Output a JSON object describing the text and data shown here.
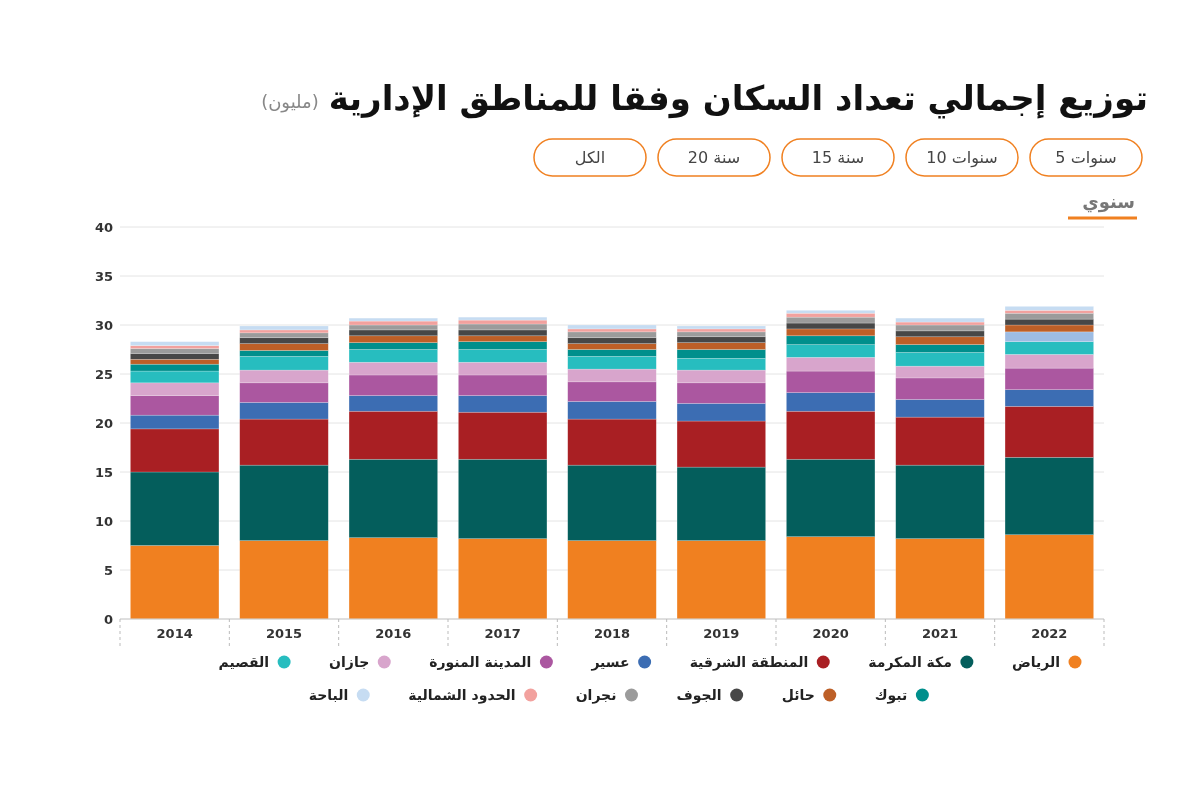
{
  "chart_data": {
    "type": "bar",
    "stacked": true,
    "title": "توزيع إجمالي تعداد السكان وفقا للمناطق الإدارية",
    "subtitle": "(مليون)",
    "annotations": [
      "5 سنوات",
      "10 سنوات",
      "15 سنة",
      "20 سنة",
      "الكل",
      "سنوي"
    ],
    "categories": [
      "2014",
      "2015",
      "2016",
      "2017",
      "2018",
      "2019",
      "2020",
      "2021",
      "2022"
    ],
    "ylim": [
      0,
      40
    ],
    "yticks": [
      0,
      5,
      10,
      15,
      20,
      25,
      30,
      35,
      40
    ],
    "grid": "y",
    "legend": "bottom",
    "series": [
      {
        "name": "الرياض",
        "color": "#f08020",
        "values": [
          7.5,
          8.0,
          8.3,
          8.2,
          8.0,
          8.0,
          8.4,
          8.2,
          8.6
        ]
      },
      {
        "name": "مكة المكرمة",
        "color": "#045e5c",
        "values": [
          7.5,
          7.7,
          8.0,
          8.1,
          7.7,
          7.5,
          7.9,
          7.5,
          7.9
        ]
      },
      {
        "name": "المنطقة الشرقية",
        "color": "#a91f23",
        "values": [
          4.4,
          4.7,
          4.9,
          4.8,
          4.7,
          4.7,
          4.9,
          4.9,
          5.2
        ]
      },
      {
        "name": "عسير",
        "color": "#3c6db3",
        "values": [
          1.4,
          1.7,
          1.6,
          1.7,
          1.8,
          1.8,
          1.9,
          1.8,
          1.7
        ]
      },
      {
        "name": "المدينة المنورة",
        "color": "#ab57a0",
        "values": [
          2.0,
          2.0,
          2.1,
          2.1,
          2.0,
          2.1,
          2.2,
          2.2,
          2.2
        ]
      },
      {
        "name": "جازان",
        "color": "#d8a5cc",
        "values": [
          1.3,
          1.3,
          1.3,
          1.3,
          1.3,
          1.3,
          1.4,
          1.2,
          1.4
        ]
      },
      {
        "name": "القصيم",
        "color": "#27bdbf",
        "values": [
          1.2,
          1.4,
          1.3,
          1.3,
          1.3,
          1.2,
          1.3,
          1.4,
          1.3
        ]
      },
      {
        "name": "تبوك",
        "color": "#008f8c",
        "colors": [
          "#008f8c",
          "#008f8c",
          "#008f8c",
          "#008f8c",
          "#008f8c",
          "#008f8c",
          "#008f8c",
          "#008f8c",
          "#9dbce3"
        ],
        "values": [
          0.7,
          0.6,
          0.7,
          0.8,
          0.7,
          0.9,
          0.9,
          0.8,
          1.0
        ]
      },
      {
        "name": "حائل",
        "color": "#bd5f27",
        "values": [
          0.5,
          0.7,
          0.7,
          0.6,
          0.6,
          0.7,
          0.7,
          0.8,
          0.7
        ]
      },
      {
        "name": "الجوف",
        "color": "#474747",
        "values": [
          0.6,
          0.6,
          0.6,
          0.6,
          0.6,
          0.6,
          0.6,
          0.6,
          0.6
        ]
      },
      {
        "name": "نجران",
        "color": "#9b9b9b",
        "values": [
          0.5,
          0.5,
          0.5,
          0.6,
          0.6,
          0.5,
          0.6,
          0.6,
          0.6
        ]
      },
      {
        "name": "الحدود الشمالية",
        "color": "#f2a19e",
        "values": [
          0.3,
          0.3,
          0.4,
          0.4,
          0.3,
          0.3,
          0.4,
          0.3,
          0.3
        ]
      },
      {
        "name": "الباحة",
        "color": "#c6dcf2",
        "values": [
          0.4,
          0.4,
          0.3,
          0.3,
          0.4,
          0.3,
          0.3,
          0.4,
          0.4
        ]
      }
    ]
  }
}
